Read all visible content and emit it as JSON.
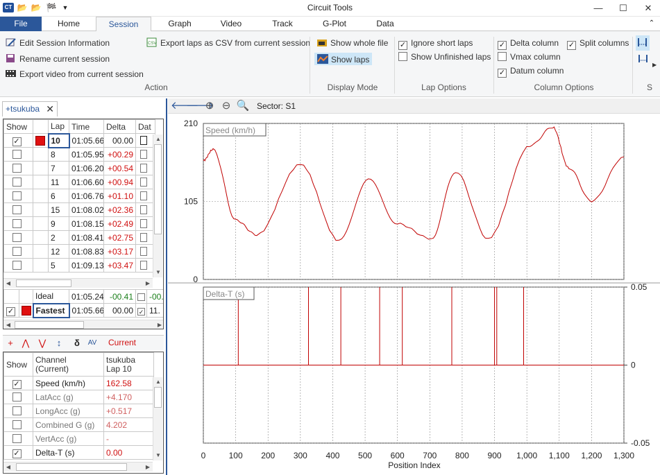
{
  "window": {
    "title": "Circuit Tools",
    "minimize": "—",
    "maximize": "☐",
    "close": "✕"
  },
  "ribbon_tabs": {
    "file": "File",
    "home": "Home",
    "session": "Session",
    "graph": "Graph",
    "video": "Video",
    "track": "Track",
    "gplot": "G-Plot",
    "data": "Data"
  },
  "ribbon": {
    "action": {
      "edit": "Edit Session Information",
      "rename": "Rename current session",
      "export_video": "Export video from current session",
      "export_csv": "Export laps as CSV from current session",
      "label": "Action"
    },
    "display_mode": {
      "whole_file": "Show whole file",
      "show_laps": "Show laps",
      "label": "Display Mode"
    },
    "lap_options": {
      "ignore_short": "Ignore short laps",
      "ignore_short_checked": true,
      "show_unfinished": "Show Unfinished laps",
      "show_unfinished_checked": false,
      "label": "Lap Options"
    },
    "column_options": {
      "delta": "Delta column",
      "delta_checked": true,
      "vmax": "Vmax column",
      "vmax_checked": false,
      "datum": "Datum column",
      "datum_checked": true,
      "split": "Split columns",
      "split_checked": true,
      "label": "Column Options"
    },
    "extra_label": "S"
  },
  "doc_tab": {
    "name": "+tsukuba",
    "close": "✕"
  },
  "laps_table": {
    "headers": [
      "Show",
      "",
      "Lap",
      "Time",
      "Delta",
      "Dat"
    ],
    "rows": [
      {
        "show": true,
        "color": true,
        "lap": "10",
        "time": "01:05.66",
        "delta": "00.00",
        "selected": true
      },
      {
        "show": false,
        "color": false,
        "lap": "8",
        "time": "01:05.95",
        "delta": "+00.29"
      },
      {
        "show": false,
        "color": false,
        "lap": "7",
        "time": "01:06.20",
        "delta": "+00.54"
      },
      {
        "show": false,
        "color": false,
        "lap": "11",
        "time": "01:06.60",
        "delta": "+00.94"
      },
      {
        "show": false,
        "color": false,
        "lap": "6",
        "time": "01:06.76",
        "delta": "+01.10"
      },
      {
        "show": false,
        "color": false,
        "lap": "15",
        "time": "01:08.02",
        "delta": "+02.36"
      },
      {
        "show": false,
        "color": false,
        "lap": "9",
        "time": "01:08.15",
        "delta": "+02.49"
      },
      {
        "show": false,
        "color": false,
        "lap": "2",
        "time": "01:08.41",
        "delta": "+02.75"
      },
      {
        "show": false,
        "color": false,
        "lap": "12",
        "time": "01:08.83",
        "delta": "+03.17"
      },
      {
        "show": false,
        "color": false,
        "lap": "5",
        "time": "01:09.13",
        "delta": "+03.47"
      }
    ],
    "summary": [
      {
        "show": null,
        "color": false,
        "label": "Ideal",
        "time": "01:05.24",
        "delta": "-00.41",
        "dat": "-00.",
        "datcheck": false
      },
      {
        "show": true,
        "color": true,
        "label": "Fastest",
        "time": "01:05.66",
        "delta": "00.00",
        "dat": "11.",
        "datcheck": true
      }
    ]
  },
  "channel_toolbar": {
    "current": "Current"
  },
  "channels_table": {
    "headers": [
      "Show",
      "Channel\n(Current)",
      "tsukuba\nLap 10"
    ],
    "header_channel_1": "Channel",
    "header_channel_2": "(Current)",
    "header_value_1": "tsukuba",
    "header_value_2": "Lap 10",
    "rows": [
      {
        "show": true,
        "name": "Speed (km/h)",
        "value": "162.58",
        "active": true
      },
      {
        "show": false,
        "name": "LatAcc (g)",
        "value": "+4.170",
        "active": false
      },
      {
        "show": false,
        "name": "LongAcc (g)",
        "value": "+0.517",
        "active": false
      },
      {
        "show": false,
        "name": "Combined G (g)",
        "value": "4.202",
        "active": false
      },
      {
        "show": false,
        "name": "VertAcc (g)",
        "value": "-",
        "active": false
      },
      {
        "show": true,
        "name": "Delta-T (s)",
        "value": "0.00",
        "active": true
      }
    ]
  },
  "graph_toolbar": {
    "sector": "Sector: S1"
  },
  "chart_data": [
    {
      "type": "line",
      "title": "Speed (km/h)",
      "series": [
        {
          "color": "#c00000",
          "x": [
            0,
            30,
            100,
            165,
            300,
            420,
            510,
            600,
            705,
            780,
            880,
            1010,
            1080,
            1130,
            1200,
            1300
          ],
          "y": [
            160,
            175,
            80,
            60,
            155,
            52,
            135,
            75,
            55,
            145,
            55,
            180,
            205,
            150,
            105,
            165
          ]
        }
      ],
      "xlim": [
        0,
        1300
      ],
      "ylim": [
        0,
        210
      ],
      "yticks": [
        "0",
        "105",
        "210"
      ]
    },
    {
      "type": "line",
      "title": "Delta-T (s)",
      "series": [
        {
          "color": "#c00000",
          "spikes_x": [
            108,
            325,
            425,
            545,
            615,
            768,
            900,
            907,
            990
          ],
          "baseline": 0
        }
      ],
      "xlim": [
        0,
        1300
      ],
      "ylim": [
        -0.05,
        0.05
      ],
      "yticks_right": [
        "0.05",
        "0",
        "-0.05"
      ],
      "xlabel": "Position Index",
      "xticks": [
        "0",
        "100",
        "200",
        "300",
        "400",
        "500",
        "600",
        "700",
        "800",
        "900",
        "1,000",
        "1,100",
        "1,200",
        "1,300"
      ]
    }
  ]
}
